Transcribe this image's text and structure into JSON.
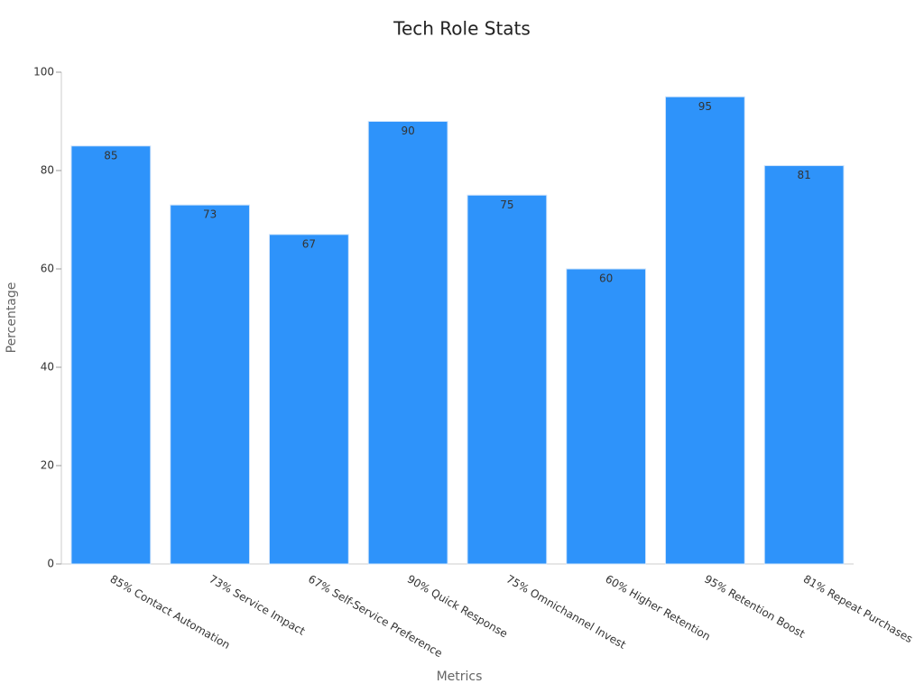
{
  "chart_data": {
    "type": "bar",
    "title": "Tech Role Stats",
    "x_label": "Metrics",
    "y_label": "Percentage",
    "categories": [
      "85% Contact Automation",
      "73% Service Impact",
      "67% Self-Service Preference",
      "90% Quick Response",
      "75% Omnichannel Invest",
      "60% Higher Retention",
      "95% Retention Boost",
      "81% Repeat Purchases"
    ],
    "values": [
      85,
      73,
      67,
      90,
      75,
      60,
      95,
      81
    ],
    "color": "#2e93fa",
    "ylim": [
      0,
      100
    ],
    "yticks": [
      0,
      20,
      40,
      60,
      80,
      100
    ],
    "grid": false
  }
}
